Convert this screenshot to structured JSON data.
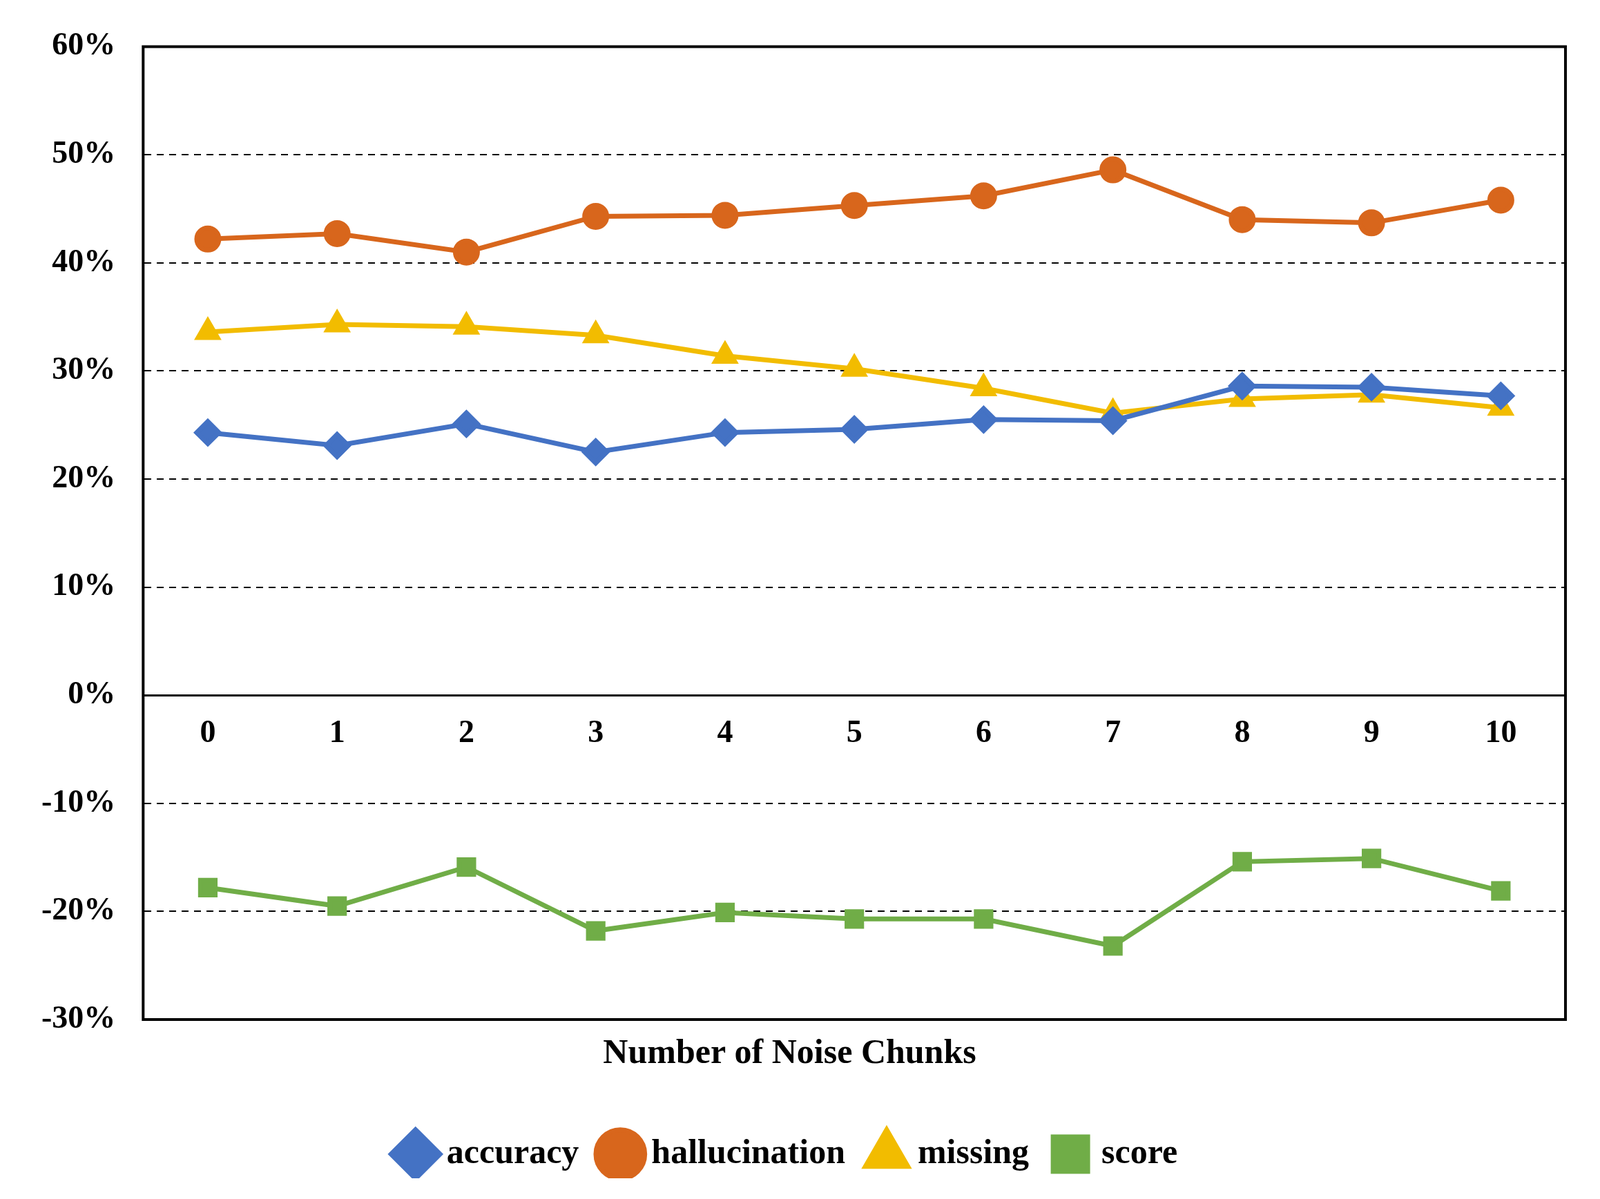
{
  "chart_data": {
    "type": "line",
    "x_label": "Number of Noise Chunks",
    "categories": [
      "0",
      "1",
      "2",
      "3",
      "4",
      "5",
      "6",
      "7",
      "8",
      "9",
      "10"
    ],
    "series": [
      {
        "name": "accuracy",
        "color": "#4472c4",
        "marker": "diamond",
        "values": [
          24.3,
          23.1,
          25.1,
          22.5,
          24.3,
          24.6,
          25.5,
          25.4,
          28.6,
          28.5,
          27.7
        ]
      },
      {
        "name": "hallucination",
        "color": "#d8661c",
        "marker": "circle",
        "values": [
          42.2,
          42.7,
          41.0,
          44.3,
          44.4,
          45.3,
          46.2,
          48.6,
          44.0,
          43.7,
          45.8
        ]
      },
      {
        "name": "missing",
        "color": "#f2bc00",
        "marker": "triangle",
        "values": [
          33.6,
          34.3,
          34.1,
          33.3,
          31.4,
          30.2,
          28.4,
          26.1,
          27.4,
          27.8,
          26.6
        ]
      },
      {
        "name": "score",
        "color": "#70ad47",
        "marker": "square",
        "values": [
          -17.8,
          -19.5,
          -15.9,
          -21.8,
          -20.1,
          -20.7,
          -20.7,
          -23.2,
          -15.4,
          -15.1,
          -18.1
        ]
      }
    ],
    "ylim": [
      -30,
      60
    ],
    "yticks": [
      {
        "value": -30,
        "label": "-30%"
      },
      {
        "value": -20,
        "label": "-20%"
      },
      {
        "value": -10,
        "label": "-10%"
      },
      {
        "value": 0,
        "label": "0%"
      },
      {
        "value": 10,
        "label": "10%"
      },
      {
        "value": 20,
        "label": "20%"
      },
      {
        "value": 30,
        "label": "30%"
      },
      {
        "value": 40,
        "label": "40%"
      },
      {
        "value": 50,
        "label": "50%"
      },
      {
        "value": 60,
        "label": "60%"
      }
    ],
    "grid": true,
    "legend": "bottom"
  }
}
